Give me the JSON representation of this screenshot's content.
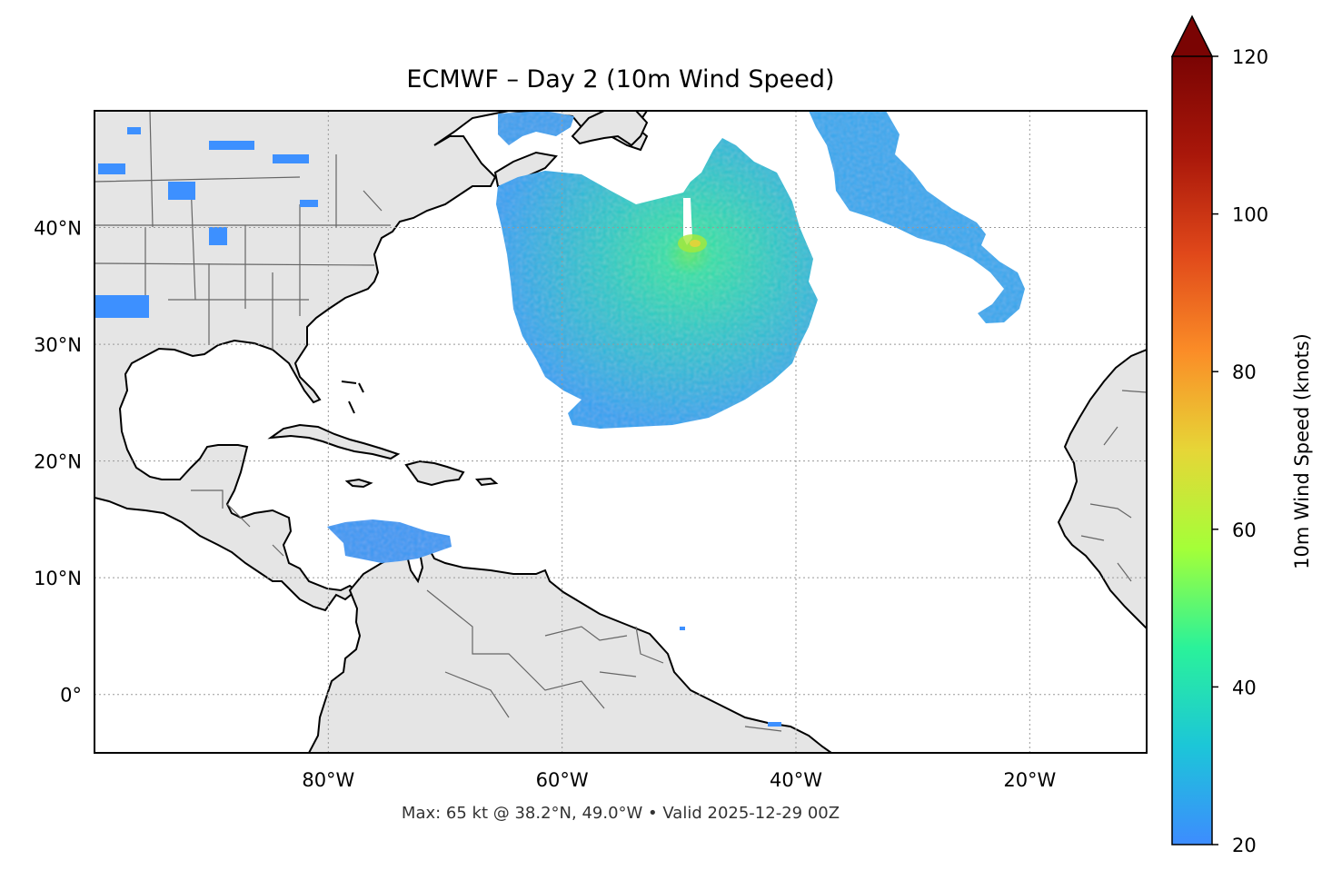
{
  "title": "ECMWF – Day 2 (10m Wind Speed)",
  "footer": "Max: 65 kt @ 38.2°N, 49.0°W • Valid 2025-12-29 00Z",
  "map": {
    "lon_range": [
      -100,
      -10
    ],
    "lat_range": [
      -5,
      50
    ],
    "lon_ticks": [
      -80,
      -60,
      -40,
      -20
    ],
    "lat_ticks": [
      0,
      10,
      20,
      30,
      40
    ],
    "lon_tick_labels": [
      "80°W",
      "60°W",
      "40°W",
      "20°W"
    ],
    "lat_tick_labels": [
      "0°",
      "10°N",
      "20°N",
      "30°N",
      "40°N"
    ],
    "gridlines": true,
    "land_color": "#e5e5e5",
    "ocean_color": "#ffffff"
  },
  "colorbar": {
    "label": "10m Wind Speed (knots)",
    "min": 20,
    "max": 120,
    "ticks": [
      20,
      40,
      60,
      80,
      100,
      120
    ],
    "tick_labels": [
      "20",
      "40",
      "60",
      "80",
      "100",
      "120"
    ],
    "extend": "max",
    "colormap": "turbo",
    "colors": [
      "#3d8cff",
      "#1cc6d8",
      "#2af29a",
      "#a4ff38",
      "#e6d637",
      "#fb8d27",
      "#e0481a",
      "#a9170a",
      "#7a0403"
    ]
  },
  "wind_features": [
    {
      "name": "central-atlantic-storm",
      "peak_kt": 65,
      "peak_lat": 38.2,
      "peak_lon": -49.0
    },
    {
      "name": "northeast-atlantic-band",
      "peak_kt": 30
    },
    {
      "name": "caribbean-patch",
      "peak_kt": 28
    }
  ]
}
